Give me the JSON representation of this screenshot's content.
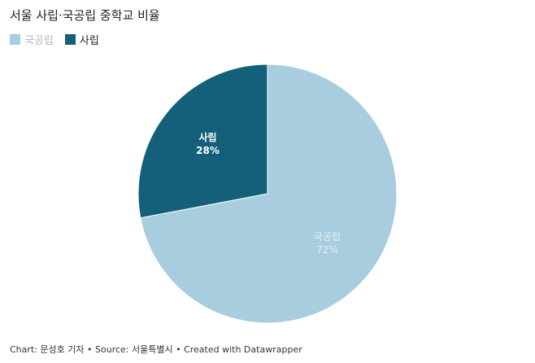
{
  "chart_data": {
    "type": "pie",
    "title": "서울 사립·국공립 중학교 비율",
    "legend_position": "top-left",
    "slices": [
      {
        "name": "국공립",
        "value": 72,
        "label": "72%",
        "color": "#a8cddf",
        "label_color": "#e6eff4"
      },
      {
        "name": "사립",
        "value": 28,
        "label": "28%",
        "color": "#14607b",
        "label_color": "#ffffff"
      }
    ]
  },
  "footer": "Chart: 문성호 기자 • Source: 서울특별시 • Created with Datawrapper"
}
